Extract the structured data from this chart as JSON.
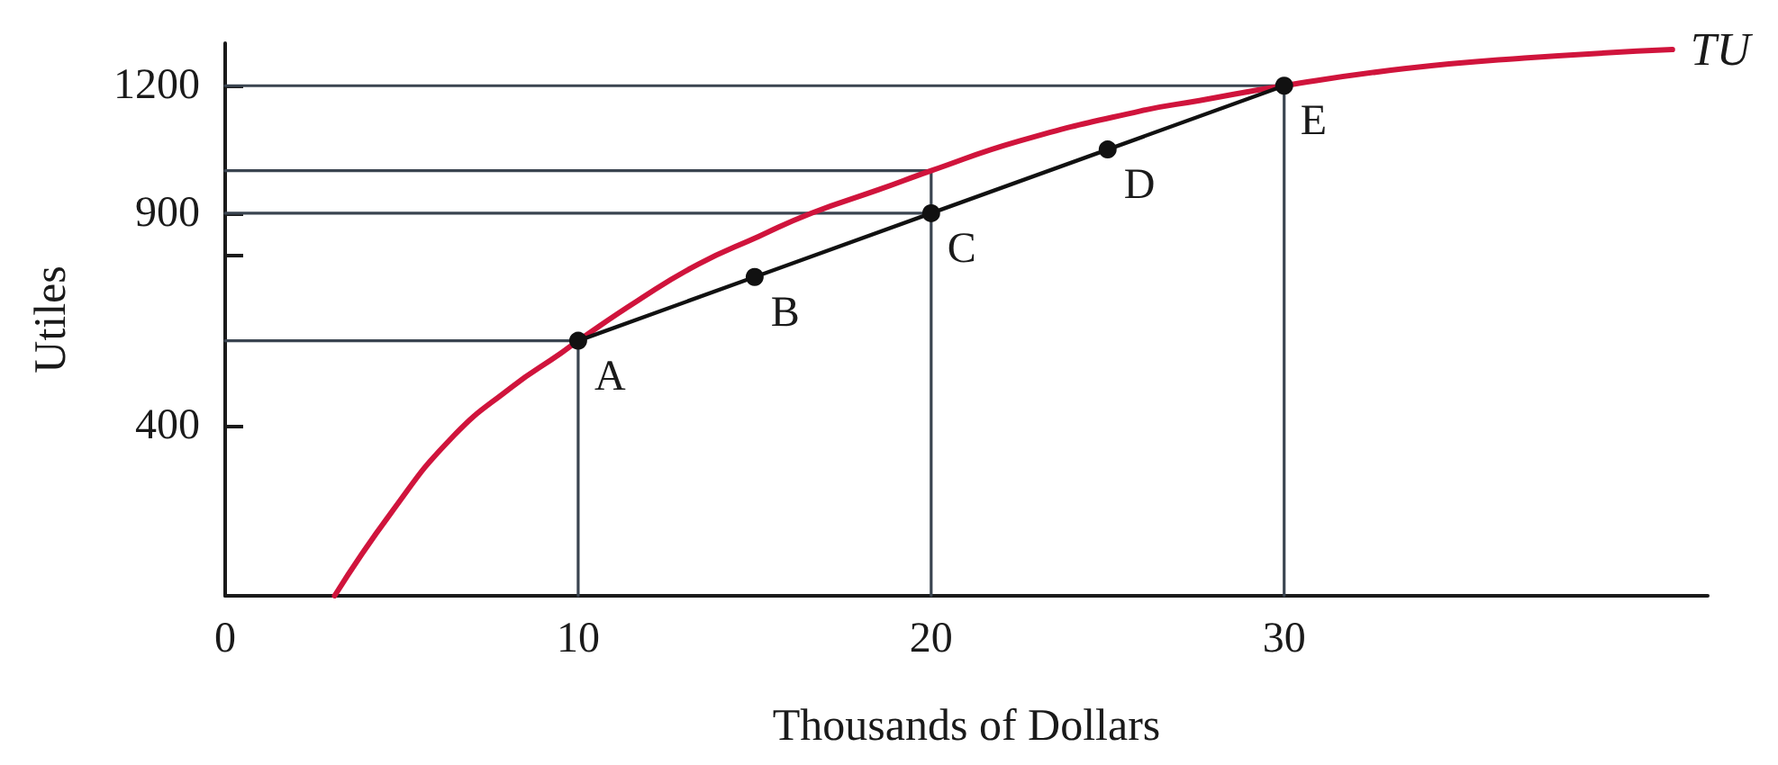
{
  "chart_data": {
    "type": "line",
    "xlabel": "Thousands of Dollars",
    "ylabel": "Utiles",
    "xlim": [
      0,
      42
    ],
    "xticks": [
      0,
      10,
      20,
      30
    ],
    "ylim": [
      0,
      1300
    ],
    "yticks": [
      400,
      {
        "value": 800,
        "label": null
      },
      900,
      1200
    ],
    "series": [
      {
        "color": "#3a4450",
        "x": [
          0,
          10,
          10
        ],
        "values": [
          600,
          600,
          0
        ]
      },
      {
        "color": "#3a4450",
        "x": [
          0,
          20
        ],
        "values": [
          900,
          900
        ]
      },
      {
        "color": "#3a4450",
        "x": [
          0,
          20,
          20
        ],
        "values": [
          1000,
          1000,
          0
        ]
      },
      {
        "color": "#3a4450",
        "x": [
          0,
          30,
          30
        ],
        "values": [
          1200,
          1200,
          0
        ]
      },
      {
        "name": "TU",
        "color": "#d0143c",
        "x": [
          3.1,
          4.7,
          6.4,
          8.1,
          9.5,
          10,
          11.7,
          13.4,
          15.1,
          16.6,
          18.5,
          20,
          22.5,
          25.9,
          27.6,
          30,
          33.4,
          36.8,
          41
        ],
        "values": [
          0,
          195,
          370,
          490,
          570,
          600,
          695,
          780,
          845,
          900,
          955,
          1000,
          1070,
          1140,
          1165,
          1200,
          1240,
          1265,
          1285
        ]
      },
      {
        "color": "#111111",
        "marker": "circle",
        "x": [
          10,
          15,
          20,
          25,
          30
        ],
        "values": [
          600,
          750,
          900,
          1050,
          1200
        ]
      }
    ],
    "annotations": [
      {
        "text": "A",
        "x": 10,
        "y": 600
      },
      {
        "text": "B",
        "x": 15,
        "y": 750
      },
      {
        "text": "C",
        "x": 20,
        "y": 900
      },
      {
        "text": "D",
        "x": 25,
        "y": 1050
      },
      {
        "text": "E",
        "x": 30,
        "y": 1200
      }
    ]
  }
}
